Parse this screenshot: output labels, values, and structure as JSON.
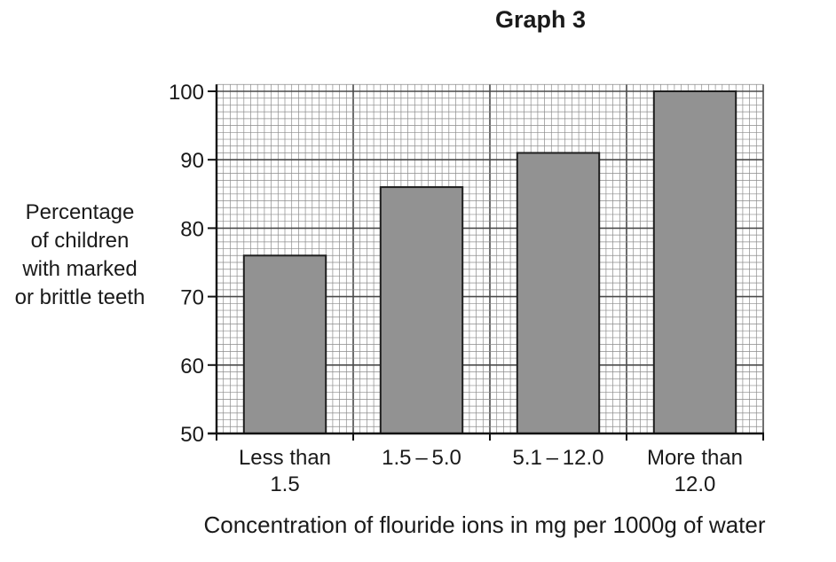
{
  "chart_data": {
    "type": "bar",
    "title": "Graph 3",
    "xlabel": "Concentration of flouride ions in mg per 1000g of water",
    "ylabel": [
      "Percentage",
      "of children",
      "with marked",
      "or brittle teeth"
    ],
    "categories": [
      [
        "Less than",
        "1.5"
      ],
      [
        "1.5 – 5.0"
      ],
      [
        "5.1 – 12.0"
      ],
      [
        "More than",
        "12.0"
      ]
    ],
    "values": [
      76,
      86,
      91,
      100
    ],
    "ylim": [
      50,
      101
    ],
    "yticks": [
      50,
      60,
      70,
      80,
      90,
      100
    ],
    "grid": true,
    "legend": "none",
    "colors": {
      "bar_fill": "#929292",
      "bar_stroke": "#1f1f1f",
      "grid_minor": "#8c8c8c",
      "grid_major": "#4a4a4a",
      "axis": "#111111"
    }
  }
}
